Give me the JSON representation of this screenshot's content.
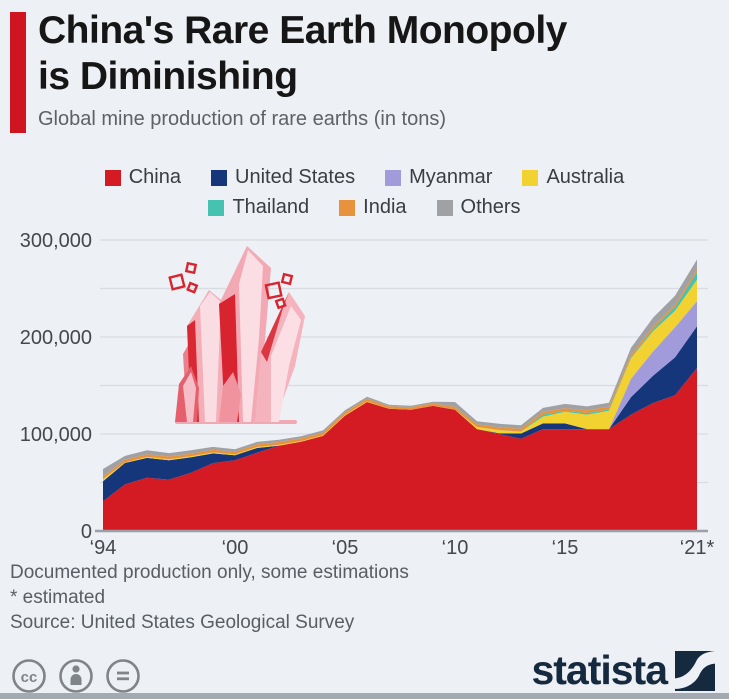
{
  "header": {
    "title_line1": "China's Rare Earth Monopoly",
    "title_line2": "is Diminishing",
    "subtitle": "Global mine production of rare earths (in tons)",
    "accent_color": "#cf1620"
  },
  "legend": {
    "rows": [
      [
        {
          "label": "China",
          "color": "#d41b24"
        },
        {
          "label": "United States",
          "color": "#16367c"
        },
        {
          "label": "Myanmar",
          "color": "#a29bdb"
        },
        {
          "label": "Australia",
          "color": "#f2d231"
        }
      ],
      [
        {
          "label": "Thailand",
          "color": "#45c2b1"
        },
        {
          "label": "India",
          "color": "#e8923d"
        },
        {
          "label": "Others",
          "color": "#9fa1a4"
        }
      ]
    ]
  },
  "chart_data": {
    "type": "area",
    "stacked": true,
    "title": "Global mine production of rare earths (in tons)",
    "unit": "tons",
    "x": [
      1994,
      1995,
      1996,
      1997,
      1998,
      1999,
      2000,
      2001,
      2002,
      2003,
      2004,
      2005,
      2006,
      2007,
      2008,
      2009,
      2010,
      2011,
      2012,
      2013,
      2014,
      2015,
      2016,
      2017,
      2018,
      2019,
      2020,
      2021
    ],
    "x_tick_labels": [
      {
        "year": 1994,
        "label": "‘94"
      },
      {
        "year": 2000,
        "label": "‘00"
      },
      {
        "year": 2005,
        "label": "‘05"
      },
      {
        "year": 2010,
        "label": "‘10"
      },
      {
        "year": 2015,
        "label": "‘15"
      },
      {
        "year": 2021,
        "label": "‘21*"
      }
    ],
    "ylim": [
      0,
      300000
    ],
    "gridline_step": 50000,
    "grid": true,
    "legend_position": "top",
    "y_ticks": [
      {
        "value": 0,
        "label": "0"
      },
      {
        "value": 100000,
        "label": "100,000"
      },
      {
        "value": 200000,
        "label": "200,000"
      },
      {
        "value": 300000,
        "label": "300,000"
      }
    ],
    "series": [
      {
        "name": "China",
        "color": "#d41b24",
        "values": [
          30600,
          48000,
          55000,
          53000,
          60000,
          70000,
          73000,
          80600,
          88000,
          92000,
          98000,
          119000,
          133000,
          126000,
          125000,
          129000,
          125000,
          105000,
          100000,
          95000,
          105000,
          105000,
          105000,
          105000,
          120000,
          132000,
          140000,
          168000
        ]
      },
      {
        "name": "United States",
        "color": "#16367c",
        "values": [
          20700,
          22200,
          20400,
          20000,
          16000,
          10000,
          5000,
          5000,
          0,
          0,
          0,
          0,
          0,
          0,
          0,
          0,
          0,
          0,
          800,
          5500,
          5900,
          5900,
          0,
          0,
          18000,
          28000,
          39000,
          43000
        ]
      },
      {
        "name": "Myanmar",
        "color": "#a29bdb",
        "values": [
          0,
          0,
          0,
          0,
          0,
          0,
          0,
          0,
          0,
          0,
          0,
          0,
          0,
          0,
          0,
          0,
          0,
          0,
          0,
          0,
          0,
          0,
          0,
          0,
          19000,
          25000,
          31000,
          26000
        ]
      },
      {
        "name": "Australia",
        "color": "#f2d231",
        "values": [
          2000,
          500,
          1000,
          1000,
          1000,
          1000,
          1000,
          1000,
          1000,
          700,
          700,
          700,
          600,
          0,
          0,
          0,
          0,
          2200,
          3200,
          2000,
          7000,
          12000,
          15000,
          19000,
          21000,
          21000,
          17000,
          22000
        ]
      },
      {
        "name": "Thailand",
        "color": "#45c2b1",
        "values": [
          160,
          10,
          20,
          20,
          20,
          20,
          20,
          20,
          20,
          20,
          20,
          20,
          20,
          0,
          0,
          0,
          170,
          0,
          100,
          100,
          2100,
          760,
          1600,
          1300,
          1000,
          1900,
          3600,
          8000
        ]
      },
      {
        "name": "India",
        "color": "#e8923d",
        "values": [
          2500,
          2750,
          2800,
          2750,
          2750,
          2700,
          2700,
          2700,
          2700,
          2700,
          2700,
          2700,
          2700,
          2700,
          2700,
          2700,
          2800,
          2800,
          2900,
          2900,
          2900,
          2900,
          2900,
          2900,
          2900,
          2900,
          2900,
          2900
        ]
      },
      {
        "name": "Others",
        "color": "#9fa1a4",
        "values": [
          8000,
          4000,
          4000,
          3500,
          3500,
          3000,
          2500,
          2500,
          2300,
          2300,
          2300,
          2000,
          2000,
          1500,
          1500,
          1500,
          5000,
          3200,
          3500,
          3500,
          4000,
          4500,
          4000,
          4000,
          7000,
          9000,
          9000,
          10000
        ]
      }
    ]
  },
  "footer": {
    "note1": "Documented production only, some estimations",
    "note2": "* estimated",
    "source": "Source: United States Geological Survey"
  },
  "branding": {
    "logo_text": "statista",
    "logo_color": "#15293f",
    "license_icons": [
      "cc",
      "attribution",
      "no-derivatives"
    ]
  }
}
